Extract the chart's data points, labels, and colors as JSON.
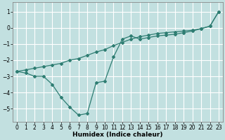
{
  "line1_x": [
    0,
    1,
    2,
    3,
    4,
    5,
    6,
    7,
    8,
    9,
    10,
    11,
    12,
    13,
    14,
    15,
    16,
    17,
    18,
    19,
    20,
    21,
    22,
    23
  ],
  "line1_y": [
    -2.7,
    -2.6,
    -2.5,
    -2.4,
    -2.3,
    -2.2,
    -2.0,
    -1.9,
    -1.7,
    -1.5,
    -1.35,
    -1.1,
    -0.9,
    -0.7,
    -0.55,
    -0.45,
    -0.35,
    -0.3,
    -0.25,
    -0.2,
    -0.15,
    -0.05,
    0.1,
    1.0
  ],
  "line2_x": [
    0,
    1,
    2,
    3,
    4,
    5,
    6,
    7,
    8,
    9,
    10,
    11,
    12,
    13,
    14,
    15,
    16,
    17,
    18,
    19,
    20,
    21,
    22,
    23
  ],
  "line2_y": [
    -2.7,
    -2.8,
    -3.0,
    -3.0,
    -3.5,
    -4.3,
    -4.9,
    -5.4,
    -5.3,
    -3.4,
    -3.3,
    -1.8,
    -0.7,
    -0.5,
    -0.7,
    -0.6,
    -0.5,
    -0.45,
    -0.4,
    -0.3,
    -0.2,
    -0.05,
    0.1,
    1.0
  ],
  "line_color": "#2e7d72",
  "marker": "D",
  "marker_size": 2,
  "bg_color": "#c2e0e0",
  "grid_color": "#ffffff",
  "xlabel": "Humidex (Indice chaleur)",
  "ylim": [
    -5.8,
    1.6
  ],
  "xlim": [
    -0.5,
    23.5
  ],
  "yticks": [
    1,
    0,
    -1,
    -2,
    -3,
    -4,
    -5
  ],
  "xticks": [
    0,
    1,
    2,
    3,
    4,
    5,
    6,
    7,
    8,
    9,
    10,
    11,
    12,
    13,
    14,
    15,
    16,
    17,
    18,
    19,
    20,
    21,
    22,
    23
  ],
  "xlabel_fontsize": 6.5,
  "tick_fontsize": 5.5
}
